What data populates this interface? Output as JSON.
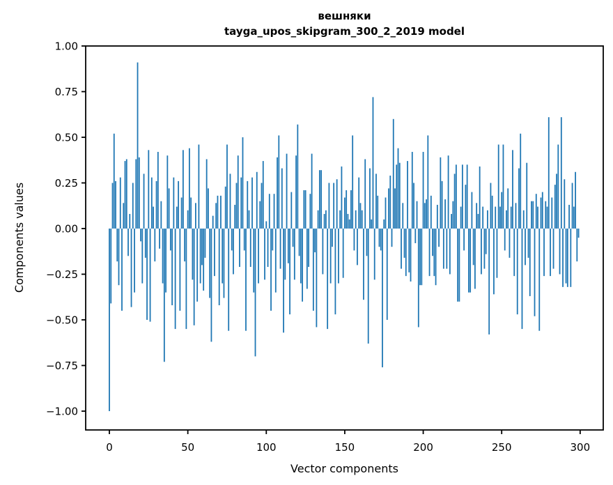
{
  "chart_data": {
    "type": "bar",
    "title": "вешняки",
    "subtitle": "tayga_upos_skipgram_300_2_2019 model",
    "xlabel": "Vector components",
    "ylabel": "Components values",
    "bar_color": "#1f77b4",
    "axis_color": "#000000",
    "grid": false,
    "legend": null,
    "n_components": 300,
    "xlim": [
      -15.4,
      314.4
    ],
    "ylim": [
      -1.1,
      1.0
    ],
    "x_ticks": [
      {
        "label": "0",
        "value": 0
      },
      {
        "label": "50",
        "value": 50
      },
      {
        "label": "100",
        "value": 100
      },
      {
        "label": "150",
        "value": 150
      },
      {
        "label": "200",
        "value": 200
      },
      {
        "label": "250",
        "value": 250
      },
      {
        "label": "300",
        "value": 300
      }
    ],
    "y_ticks": [
      {
        "label": "1.00",
        "value": 1.0
      },
      {
        "label": "0.75",
        "value": 0.75
      },
      {
        "label": "0.50",
        "value": 0.5
      },
      {
        "label": "0.25",
        "value": 0.25
      },
      {
        "label": "0.00",
        "value": 0.0
      },
      {
        "label": "−0.25",
        "value": -0.25
      },
      {
        "label": "−0.50",
        "value": -0.5
      },
      {
        "label": "−0.75",
        "value": -0.75
      },
      {
        "label": "−1.00",
        "value": -1.0
      }
    ],
    "values": [
      -1.0,
      -0.41,
      0.25,
      0.52,
      0.26,
      -0.18,
      -0.31,
      0.28,
      -0.45,
      0.14,
      0.37,
      0.38,
      -0.15,
      0.08,
      -0.43,
      0.25,
      -0.35,
      0.38,
      0.91,
      0.39,
      -0.07,
      -0.3,
      0.3,
      -0.16,
      -0.5,
      0.43,
      -0.51,
      0.28,
      0.12,
      -0.18,
      0.26,
      0.42,
      -0.11,
      0.15,
      -0.3,
      -0.73,
      -0.35,
      0.4,
      0.22,
      -0.12,
      -0.42,
      0.28,
      -0.55,
      0.12,
      0.26,
      -0.45,
      0.17,
      0.43,
      -0.18,
      -0.55,
      0.1,
      0.44,
      0.17,
      -0.28,
      -0.53,
      0.14,
      -0.4,
      0.46,
      -0.3,
      -0.2,
      -0.34,
      -0.16,
      0.38,
      0.22,
      -0.38,
      -0.62,
      0.07,
      -0.26,
      0.14,
      0.18,
      -0.42,
      0.18,
      -0.3,
      -0.38,
      0.23,
      0.46,
      -0.56,
      0.3,
      -0.12,
      -0.25,
      0.13,
      0.25,
      0.4,
      -0.21,
      0.28,
      0.5,
      -0.12,
      -0.56,
      0.26,
      0.1,
      -0.21,
      0.28,
      -0.35,
      -0.7,
      0.31,
      -0.3,
      0.15,
      0.25,
      0.37,
      -0.28,
      0.04,
      -0.21,
      0.19,
      -0.45,
      -0.12,
      0.19,
      -0.35,
      0.39,
      0.51,
      -0.22,
      0.33,
      -0.57,
      -0.28,
      0.41,
      -0.19,
      -0.47,
      0.2,
      -0.1,
      -0.28,
      0.4,
      0.57,
      -0.15,
      -0.3,
      -0.4,
      0.21,
      0.21,
      -0.33,
      -0.21,
      0.19,
      0.41,
      -0.45,
      -0.13,
      -0.54,
      0.1,
      0.32,
      0.32,
      -0.25,
      0.08,
      0.1,
      -0.55,
      0.25,
      -0.3,
      -0.1,
      0.25,
      -0.47,
      0.27,
      -0.3,
      0.1,
      0.34,
      -0.27,
      0.17,
      0.21,
      0.08,
      0.05,
      0.21,
      0.51,
      -0.12,
      0.1,
      -0.2,
      0.28,
      0.14,
      0.1,
      -0.39,
      0.38,
      -0.15,
      -0.63,
      0.33,
      0.05,
      0.72,
      -0.28,
      0.3,
      0.18,
      -0.1,
      -0.12,
      -0.76,
      0.05,
      0.17,
      -0.5,
      0.22,
      0.29,
      -0.1,
      0.6,
      0.22,
      0.35,
      0.44,
      0.36,
      -0.22,
      0.14,
      -0.16,
      -0.26,
      0.37,
      -0.24,
      -0.29,
      0.42,
      0.25,
      -0.08,
      0.15,
      -0.54,
      -0.31,
      -0.31,
      0.42,
      0.14,
      0.16,
      0.51,
      -0.26,
      0.18,
      -0.15,
      -0.26,
      -0.31,
      0.13,
      -0.1,
      0.39,
      0.26,
      -0.22,
      0.16,
      -0.22,
      0.4,
      -0.25,
      0.08,
      0.15,
      0.3,
      0.35,
      -0.4,
      -0.4,
      0.12,
      0.35,
      -0.12,
      0.24,
      0.35,
      -0.35,
      -0.35,
      0.2,
      -0.2,
      -0.33,
      0.14,
      0.08,
      0.34,
      -0.25,
      0.12,
      -0.22,
      -0.14,
      0.1,
      -0.58,
      0.25,
      0.18,
      -0.36,
      0.12,
      -0.27,
      0.46,
      0.12,
      0.2,
      0.46,
      -0.12,
      0.1,
      0.22,
      -0.16,
      0.12,
      0.43,
      -0.26,
      0.14,
      -0.47,
      0.33,
      0.52,
      -0.55,
      0.1,
      -0.2,
      0.36,
      -0.16,
      -0.37,
      0.15,
      0.15,
      -0.48,
      0.19,
      0.12,
      -0.56,
      0.17,
      0.2,
      -0.26,
      0.15,
      0.12,
      0.61,
      -0.26,
      0.17,
      -0.22,
      0.24,
      0.3,
      0.46,
      -0.25,
      0.61,
      -0.32,
      0.27,
      -0.3,
      -0.32,
      0.13,
      -0.32,
      0.25,
      0.12,
      0.31,
      -0.18,
      -0.05
    ]
  }
}
